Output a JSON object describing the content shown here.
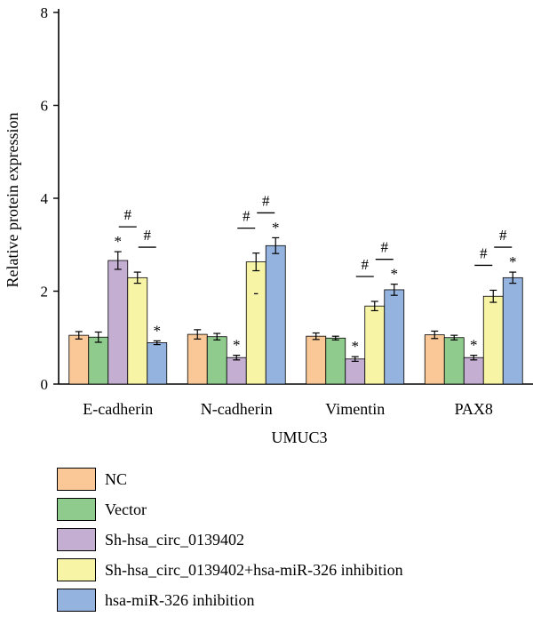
{
  "chart_data": {
    "type": "bar",
    "title": "",
    "xlabel": "UMUC3",
    "ylabel": "Relative protein expression",
    "ylim": [
      0,
      8
    ],
    "yticks": [
      "0",
      "2",
      "4",
      "6",
      "8"
    ],
    "categories": [
      "E-cadherin",
      "N-cadherin",
      "Vimentin",
      "PAX8"
    ],
    "grid": false,
    "legend_position": "bottom",
    "series": [
      {
        "name": "NC",
        "color": "#FAC896",
        "values": [
          1.05,
          1.07,
          1.03,
          1.06
        ],
        "errors": [
          0.08,
          0.1,
          0.07,
          0.08
        ],
        "annotations": [
          "",
          "",
          "",
          ""
        ]
      },
      {
        "name": "Vector",
        "color": "#8FCB8C",
        "values": [
          1.01,
          1.02,
          0.99,
          1.0
        ],
        "errors": [
          0.11,
          0.07,
          0.04,
          0.05
        ],
        "annotations": [
          "",
          "",
          "",
          ""
        ]
      },
      {
        "name": "Sh-hsa_circ_0139402",
        "color": "#C4AFD3",
        "values": [
          2.66,
          0.57,
          0.54,
          0.57
        ],
        "errors": [
          0.19,
          0.05,
          0.05,
          0.05
        ],
        "annotations": [
          "*",
          "*",
          "*",
          "*"
        ]
      },
      {
        "name": "Sh-hsa_circ_0139402+hsa-miR-326 inhibition",
        "color": "#F8F4A6",
        "values": [
          2.29,
          2.63,
          1.68,
          1.89
        ],
        "errors": [
          0.12,
          0.19,
          0.1,
          0.13
        ],
        "annotations": [
          "",
          "-",
          "",
          ""
        ]
      },
      {
        "name": "hsa-miR-326 inhibition",
        "color": "#94B3DE",
        "values": [
          0.89,
          2.98,
          2.03,
          2.29
        ],
        "errors": [
          0.04,
          0.17,
          0.12,
          0.12
        ],
        "annotations": [
          "*",
          "*",
          "*",
          "*"
        ]
      }
    ],
    "comparison_marks": [
      {
        "category": 0,
        "from_series": 2,
        "to_series": 3,
        "label": "#"
      },
      {
        "category": 0,
        "from_series": 3,
        "to_series": 4,
        "label": "#"
      },
      {
        "category": 1,
        "from_series": 2,
        "to_series": 3,
        "label": "#"
      },
      {
        "category": 1,
        "from_series": 3,
        "to_series": 4,
        "label": "#"
      },
      {
        "category": 2,
        "from_series": 2,
        "to_series": 3,
        "label": "#"
      },
      {
        "category": 2,
        "from_series": 3,
        "to_series": 4,
        "label": "#"
      },
      {
        "category": 3,
        "from_series": 2,
        "to_series": 3,
        "label": "#"
      },
      {
        "category": 3,
        "from_series": 3,
        "to_series": 4,
        "label": "#"
      }
    ]
  }
}
